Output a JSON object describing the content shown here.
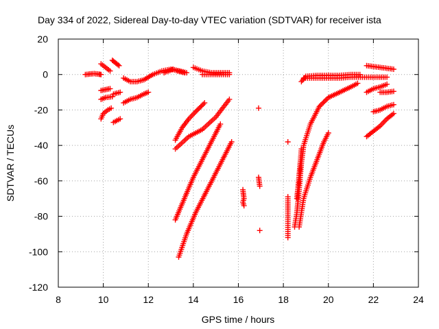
{
  "chart_data": {
    "type": "scatter",
    "title": "Day 334 of 2022, Sidereal Day-to-day VTEC variation (SDTVAR) for receiver ista",
    "xlabel": "GPS time / hours",
    "ylabel": "SDTVAR / TECUs",
    "xlim": [
      8,
      24
    ],
    "ylim": [
      -120,
      20
    ],
    "xticks": [
      "8",
      "10",
      "12",
      "14",
      "16",
      "18",
      "20",
      "22",
      "24"
    ],
    "yticks": [
      "20",
      "0",
      "-20",
      "-40",
      "-60",
      "-80",
      "-100",
      "-120"
    ],
    "grid": true,
    "marker": "+",
    "color": "#ff0000",
    "series": [
      {
        "name": "s1",
        "x": [
          9.2,
          9.4,
          9.6,
          9.8,
          9.9
        ],
        "y": [
          0,
          0.3,
          0.5,
          0.2,
          0
        ]
      },
      {
        "name": "s2",
        "x": [
          9.9,
          10.1,
          10.3
        ],
        "y": [
          6,
          4,
          2
        ]
      },
      {
        "name": "s3",
        "x": [
          10.4,
          10.55,
          10.7
        ],
        "y": [
          8,
          6.5,
          5
        ]
      },
      {
        "name": "s4",
        "x": [
          9.9,
          10.1,
          10.3
        ],
        "y": [
          -9,
          -8.5,
          -8
        ]
      },
      {
        "name": "s5",
        "x": [
          9.9,
          10.1,
          10.4
        ],
        "y": [
          -14,
          -13,
          -12.5
        ]
      },
      {
        "name": "s6",
        "x": [
          10.45,
          10.6,
          10.75
        ],
        "y": [
          -11,
          -10.5,
          -10
        ]
      },
      {
        "name": "s7",
        "x": [
          9.9,
          10.0,
          10.2,
          10.35
        ],
        "y": [
          -25,
          -22,
          -20,
          -19
        ]
      },
      {
        "name": "s8",
        "x": [
          10.45,
          10.6,
          10.75
        ],
        "y": [
          -27,
          -26,
          -25
        ]
      },
      {
        "name": "s9",
        "x": [
          10.9,
          11.2,
          11.5,
          11.8,
          12.0
        ],
        "y": [
          -16,
          -14,
          -13,
          -11,
          -10
        ]
      },
      {
        "name": "s10",
        "x": [
          10.9,
          11.2,
          11.5,
          11.8,
          12.2,
          12.6,
          13.0,
          13.4,
          13.7
        ],
        "y": [
          -2,
          -4,
          -4,
          -3,
          0,
          2,
          3,
          2,
          1
        ]
      },
      {
        "name": "s11",
        "x": [
          12.7,
          12.9,
          13.1,
          13.3,
          13.6
        ],
        "y": [
          1,
          2,
          3,
          2,
          1
        ]
      },
      {
        "name": "s12",
        "x": [
          14.0,
          14.4,
          14.8,
          15.2,
          15.6
        ],
        "y": [
          4,
          2,
          1,
          1,
          1
        ]
      },
      {
        "name": "s13",
        "x": [
          14.4,
          15.0,
          15.6
        ],
        "y": [
          0,
          0,
          0
        ]
      },
      {
        "name": "s14",
        "x": [
          13.2,
          13.5,
          13.8,
          14.1,
          14.5
        ],
        "y": [
          -37,
          -30,
          -25,
          -21,
          -16
        ]
      },
      {
        "name": "s15",
        "x": [
          13.2,
          13.8,
          14.4,
          15.0,
          15.6
        ],
        "y": [
          -42,
          -35,
          -31,
          -24,
          -14
        ]
      },
      {
        "name": "s16",
        "x": [
          13.2,
          13.6,
          14.0,
          14.4,
          14.8,
          15.2
        ],
        "y": [
          -82,
          -70,
          -58,
          -48,
          -38,
          -28
        ]
      },
      {
        "name": "s17",
        "x": [
          13.35,
          13.7,
          14.1,
          14.5,
          14.9,
          15.3,
          15.7
        ],
        "y": [
          -103,
          -90,
          -78,
          -68,
          -58,
          -48,
          -38
        ]
      },
      {
        "name": "s18",
        "x": [
          16.2,
          16.25,
          16.2,
          16.25
        ],
        "y": [
          -65,
          -70,
          -72,
          -74
        ]
      },
      {
        "name": "s19",
        "x": [
          16.9,
          16.9,
          16.95,
          16.95
        ],
        "y": [
          -19,
          -58,
          -63,
          -88
        ]
      },
      {
        "name": "s20",
        "x": [
          18.2,
          18.2,
          18.2
        ],
        "y": [
          -38,
          -69,
          -92
        ]
      },
      {
        "name": "s21",
        "x": [
          18.5,
          18.6,
          18.7,
          18.8,
          18.9,
          19.2,
          19.6,
          20.0,
          20.5,
          21.0,
          21.3
        ],
        "y": [
          -86,
          -78,
          -65,
          -50,
          -40,
          -28,
          -18,
          -13,
          -10,
          -7,
          -5
        ]
      },
      {
        "name": "s22",
        "x": [
          18.6,
          18.65,
          18.7,
          18.75,
          18.8
        ],
        "y": [
          -70,
          -64,
          -57,
          -50,
          -42
        ]
      },
      {
        "name": "s23",
        "x": [
          18.8,
          19.0,
          19.5,
          20.0,
          20.5,
          21.0,
          21.4
        ],
        "y": [
          -4,
          -1,
          -0.5,
          -0.5,
          -0.5,
          0,
          0
        ]
      },
      {
        "name": "s24",
        "x": [
          18.9,
          19.5,
          20.0,
          20.5,
          21.0,
          21.6,
          22.2,
          22.6
        ],
        "y": [
          -2,
          -2,
          -2,
          -2,
          -1.5,
          -1.5,
          -1.5,
          -1.5
        ]
      },
      {
        "name": "s25",
        "x": [
          18.7,
          18.9,
          19.2,
          19.5,
          19.8,
          20.0
        ],
        "y": [
          -86,
          -70,
          -58,
          -48,
          -38,
          -33
        ]
      },
      {
        "name": "s26",
        "x": [
          21.7,
          22.0,
          22.3,
          22.6,
          22.9
        ],
        "y": [
          5,
          4.5,
          4,
          3.5,
          3
        ]
      },
      {
        "name": "s27",
        "x": [
          21.7,
          22.0,
          22.3,
          22.6
        ],
        "y": [
          -10,
          -8,
          -7,
          -5.5
        ]
      },
      {
        "name": "s28",
        "x": [
          22.3,
          22.6,
          22.9
        ],
        "y": [
          -10,
          -10,
          -9.5
        ]
      },
      {
        "name": "s29",
        "x": [
          22.0,
          22.3,
          22.6,
          22.9
        ],
        "y": [
          -21,
          -20,
          -18,
          -17
        ]
      },
      {
        "name": "s30",
        "x": [
          21.7,
          22.0,
          22.3,
          22.6,
          22.9
        ],
        "y": [
          -35,
          -32,
          -29,
          -25,
          -22
        ]
      }
    ]
  }
}
